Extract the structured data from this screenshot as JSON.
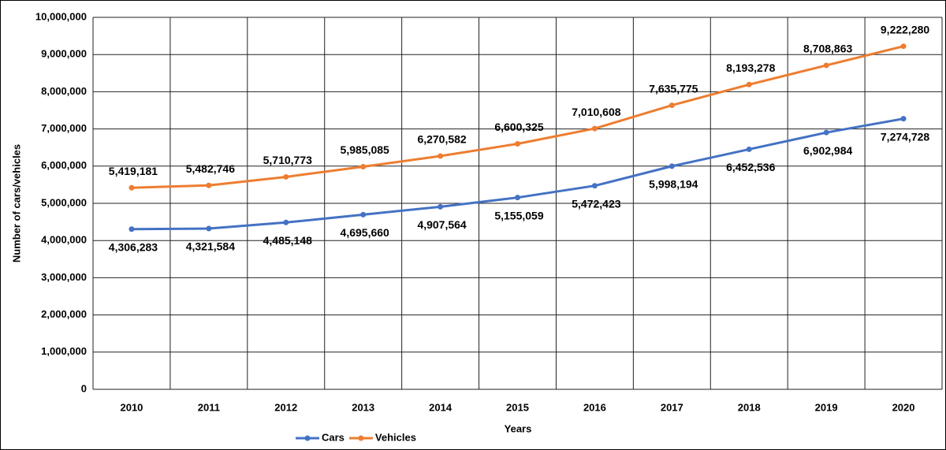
{
  "chart_data": {
    "type": "line",
    "x_label": "Years",
    "y_label": "Number  of cars/vehicles",
    "categories": [
      "2010",
      "2011",
      "2012",
      "2013",
      "2014",
      "2015",
      "2016",
      "2017",
      "2018",
      "2019",
      "2020"
    ],
    "series": [
      {
        "name": "Cars",
        "color": "#4472c4",
        "values": [
          4306283,
          4321584,
          4485148,
          4695660,
          4907564,
          5155059,
          5472423,
          5998194,
          6452536,
          6902984,
          7274728
        ],
        "value_labels": [
          "4,306,283",
          "4,321,584",
          "4,485,148",
          "4,695,660",
          "4,907,564",
          "5,155,059",
          "5,472,423",
          "5,998,194",
          "6,452,536",
          "6,902,984",
          "7,274,728"
        ]
      },
      {
        "name": "Vehicles",
        "color": "#ed7d31",
        "values": [
          5419181,
          5482746,
          5710773,
          5985085,
          6270582,
          6600325,
          7010608,
          7635775,
          8193278,
          8708863,
          9222280
        ],
        "value_labels": [
          "5,419,181",
          "5,482,746",
          "5,710,773",
          "5,985,085",
          "6,270,582",
          "6,600,325",
          "7,010,608",
          "7,635,775",
          "8,193,278",
          "8,708,863",
          "9,222,280"
        ]
      }
    ],
    "ylim": [
      0,
      10000000
    ],
    "yticks": [
      0,
      {
        "value": 1000000,
        "label": "1,000,000"
      },
      {
        "value": 2000000,
        "label": "2,000,000"
      },
      {
        "value": 3000000,
        "label": "3,000,000"
      },
      {
        "value": 4000000,
        "label": "4,000,000"
      },
      {
        "value": 5000000,
        "label": "5,000,000"
      },
      {
        "value": 6000000,
        "label": "6,000,000"
      },
      {
        "value": 7000000,
        "label": "7,000,000"
      },
      {
        "value": 8000000,
        "label": "8,000,000"
      },
      {
        "value": 9000000,
        "label": "9,000,000"
      },
      {
        "value": 10000000,
        "label": "10,000,000"
      }
    ],
    "grid": true,
    "legend": "bottom"
  }
}
